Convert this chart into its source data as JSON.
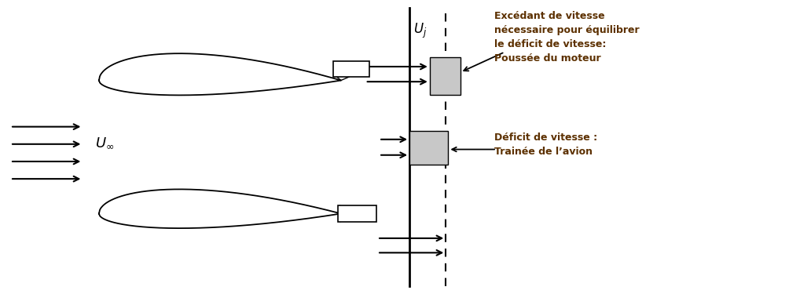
{
  "fig_width": 10.32,
  "fig_height": 3.75,
  "bg_color": "#ffffff",
  "text_excedant": "Excédant de vitesse\nnécessaire pour équilibrer\nle déficit de vitesse:\nPoussée du moteur",
  "text_deficit": "Déficit de vitesse :\nTrainée de l’avion",
  "text_color": "#5c3000",
  "font_size_annot": 9,
  "gray_color": "#c8c8c8"
}
